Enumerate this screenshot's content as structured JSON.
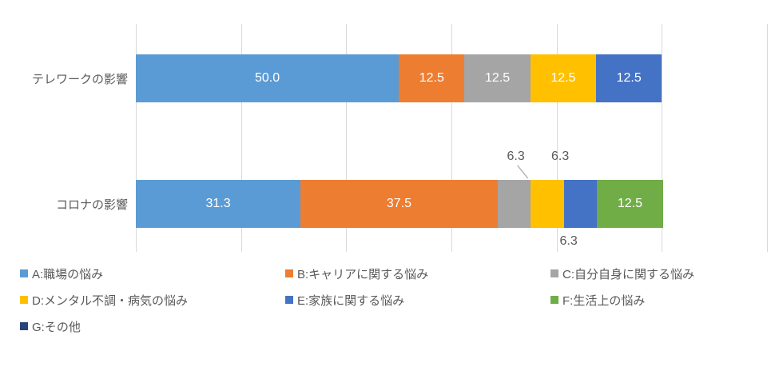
{
  "chart_data": {
    "type": "bar",
    "orientation": "horizontal",
    "stacked": true,
    "grid": true,
    "legend_position": "bottom",
    "axis": {
      "min": 0,
      "max": 120,
      "major_unit": 20
    },
    "categories": [
      "テレワークの影響",
      "コロナの影響"
    ],
    "series": [
      {
        "name": "A:職場の悩み",
        "color": "#5B9BD5",
        "values": [
          50.0,
          31.3
        ],
        "labels": [
          "50.0",
          "31.3"
        ],
        "placements": [
          "inside",
          "inside"
        ]
      },
      {
        "name": "B:キャリアに関する悩み",
        "color": "#ED7D31",
        "values": [
          12.5,
          37.5
        ],
        "labels": [
          "12.5",
          "37.5"
        ],
        "placements": [
          "inside",
          "inside"
        ]
      },
      {
        "name": "C:自分自身に関する悩み",
        "color": "#A5A5A5",
        "values": [
          12.5,
          6.3
        ],
        "labels": [
          "12.5",
          "6.3"
        ],
        "placements": [
          "inside",
          "above-leader"
        ]
      },
      {
        "name": "D:メンタル不調・病気の悩み",
        "color": "#FFC000",
        "values": [
          12.5,
          6.3
        ],
        "labels": [
          "12.5",
          "6.3"
        ],
        "placements": [
          "inside",
          "above"
        ]
      },
      {
        "name": "E:家族に関する悩み",
        "color": "#4472C4",
        "values": [
          12.5,
          6.3
        ],
        "labels": [
          "12.5",
          "6.3"
        ],
        "placements": [
          "inside",
          "below"
        ]
      },
      {
        "name": "F:生活上の悩み",
        "color": "#70AD47",
        "values": [
          0,
          12.5
        ],
        "labels": [
          "",
          "12.5"
        ],
        "placements": [
          null,
          "inside"
        ]
      },
      {
        "name": "G:その他",
        "color": "#264478",
        "values": [
          0,
          0
        ],
        "labels": [
          "",
          ""
        ],
        "placements": [
          null,
          null
        ]
      }
    ]
  },
  "colors": {
    "background": "#FFFFFF",
    "gridline": "#D9D9D9",
    "text": "#595959",
    "label_inside": "#FFFFFF",
    "leader_line": "#A6A6A6"
  }
}
